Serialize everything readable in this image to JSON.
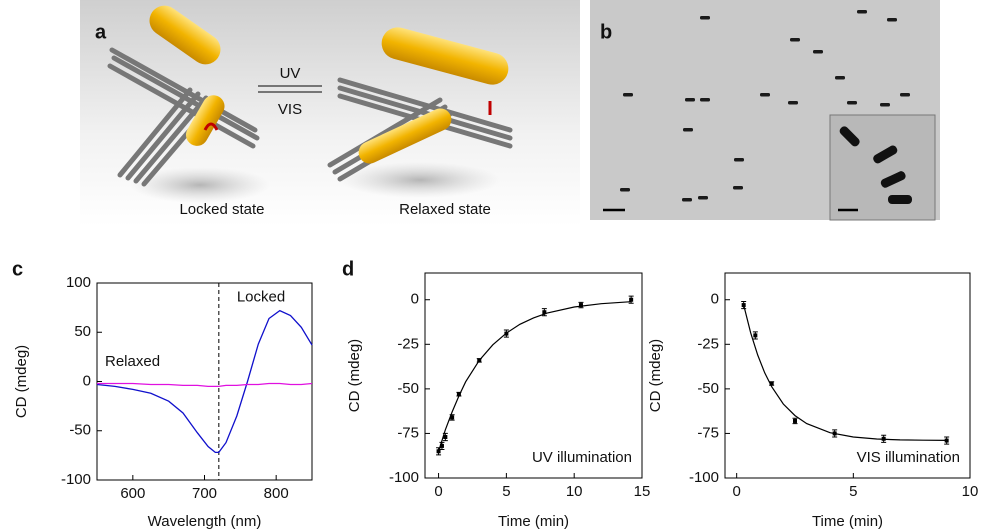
{
  "panels": {
    "a": {
      "label": "a",
      "uv": "UV",
      "vis": "VIS",
      "left_caption": "Locked state",
      "right_caption": "Relaxed state"
    },
    "b": {
      "label": "b"
    },
    "c": {
      "label": "c"
    },
    "d": {
      "label": "d"
    }
  },
  "chart_data": [
    {
      "type": "line",
      "xlabel": "Wavelength (nm)",
      "ylabel": "CD (mdeg)",
      "x": [
        550,
        575,
        600,
        625,
        650,
        670,
        690,
        705,
        715,
        720,
        730,
        745,
        760,
        775,
        790,
        805,
        820,
        835,
        850
      ],
      "series": [
        {
          "name": "Locked",
          "color": "#1010cc",
          "values": [
            -3,
            -5,
            -8,
            -12,
            -20,
            -32,
            -52,
            -66,
            -72,
            -72,
            -62,
            -35,
            0,
            38,
            64,
            72,
            67,
            55,
            37
          ]
        },
        {
          "name": "Relaxed",
          "color": "#e010e0",
          "values": [
            -2,
            -2,
            -2,
            -3,
            -3,
            -4,
            -4,
            -5,
            -5,
            -5,
            -4,
            -4,
            -3,
            -3,
            -2,
            -2,
            -3,
            -3,
            -2
          ]
        }
      ],
      "vline": 720,
      "xlim": [
        550,
        850
      ],
      "xticks": [
        600,
        700,
        800
      ],
      "ylim": [
        -100,
        100
      ],
      "yticks": [
        100,
        50,
        0,
        -50,
        -100
      ]
    },
    {
      "type": "scatter",
      "xlabel": "Time (min)",
      "ylabel": "CD (mdeg)",
      "annotation": "UV illumination",
      "x": [
        0,
        0.25,
        0.5,
        1,
        1.5,
        3,
        5,
        7.8,
        10.5,
        14.2
      ],
      "values": [
        -85,
        -82,
        -77,
        -66,
        -53,
        -34,
        -19,
        -7,
        -3,
        0
      ],
      "errors": [
        2,
        2,
        2,
        1.5,
        1,
        1,
        2,
        2,
        1.5,
        2
      ],
      "fit": {
        "x": [
          0,
          0.5,
          1,
          1.5,
          2,
          3,
          4,
          5,
          6,
          7,
          8,
          10,
          12,
          14.2
        ],
        "values": [
          -85,
          -73,
          -63,
          -54,
          -46,
          -34,
          -25.3,
          -18.7,
          -13.8,
          -10.2,
          -7.5,
          -4.1,
          -2.2,
          -1.1
        ]
      },
      "xlim": [
        -1,
        15
      ],
      "xticks": [
        0,
        5,
        10,
        15
      ],
      "ylim": [
        -100,
        15
      ],
      "yticks": [
        0,
        -25,
        -50,
        -75,
        -100
      ]
    },
    {
      "type": "scatter",
      "xlabel": "Time (min)",
      "ylabel": "CD (mdeg)",
      "annotation": "VIS illumination",
      "x": [
        0.3,
        0.8,
        1.5,
        2.5,
        4.2,
        6.3,
        9
      ],
      "values": [
        -3,
        -20,
        -47,
        -68,
        -75,
        -78,
        -79
      ],
      "errors": [
        2,
        2,
        1,
        1.5,
        2,
        2,
        2
      ],
      "fit": {
        "x": [
          0.3,
          0.6,
          0.9,
          1.2,
          1.5,
          2,
          2.5,
          3,
          4,
          5,
          6,
          7,
          8,
          9
        ],
        "values": [
          -3,
          -18.6,
          -31,
          -41,
          -48.8,
          -58.5,
          -65,
          -69.5,
          -74.6,
          -77,
          -78.1,
          -78.6,
          -78.8,
          -78.9
        ]
      },
      "xlim": [
        -0.5,
        10
      ],
      "xticks": [
        0,
        5,
        10
      ],
      "ylim": [
        -100,
        15
      ],
      "yticks": [
        0,
        -25,
        -50,
        -75,
        -100
      ]
    }
  ]
}
